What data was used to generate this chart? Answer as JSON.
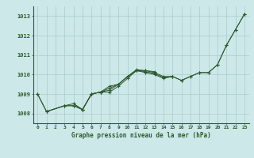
{
  "title": "Graphe pression niveau de la mer (hPa)",
  "x_labels": [
    0,
    1,
    2,
    3,
    4,
    5,
    6,
    7,
    8,
    9,
    10,
    11,
    12,
    13,
    14,
    15,
    16,
    17,
    18,
    19,
    20,
    21,
    22,
    23
  ],
  "ylim": [
    1007.5,
    1013.5
  ],
  "yticks": [
    1008,
    1009,
    1010,
    1011,
    1012,
    1013
  ],
  "background_color": "#cce8e8",
  "grid_color": "#aacccc",
  "line_color": "#2d5a2d",
  "series": [
    [
      1009.0,
      1008.1,
      null,
      1008.4,
      1008.4,
      1008.2,
      1009.0,
      1009.1,
      1009.1,
      1009.4,
      1009.8,
      1010.2,
      1010.1,
      1010.0,
      1009.8,
      1009.9,
      1009.7,
      1009.9,
      1010.1,
      1010.1,
      1010.5,
      1011.5,
      1012.3,
      1013.1
    ],
    [
      null,
      1008.1,
      null,
      1008.4,
      1008.5,
      1008.2,
      1009.0,
      1009.1,
      1009.2,
      1009.5,
      1009.9,
      1010.2,
      1010.2,
      1010.1,
      1009.9,
      1009.9,
      null,
      null,
      null,
      null,
      null,
      null,
      null,
      null
    ],
    [
      null,
      null,
      null,
      null,
      1008.5,
      1008.2,
      1009.0,
      1009.1,
      1009.3,
      1009.5,
      1009.9,
      1010.25,
      1010.2,
      1010.15,
      null,
      null,
      null,
      null,
      null,
      null,
      null,
      null,
      null,
      null
    ],
    [
      1009.0,
      1008.1,
      null,
      1008.4,
      1008.4,
      1008.2,
      1009.0,
      1009.1,
      1009.4,
      1009.5,
      1009.9,
      1010.2,
      1010.15,
      1010.05,
      1009.85,
      1009.9,
      1009.7,
      1009.9,
      1010.1,
      1010.1,
      1010.5,
      1011.5,
      1012.3,
      1013.1
    ]
  ]
}
